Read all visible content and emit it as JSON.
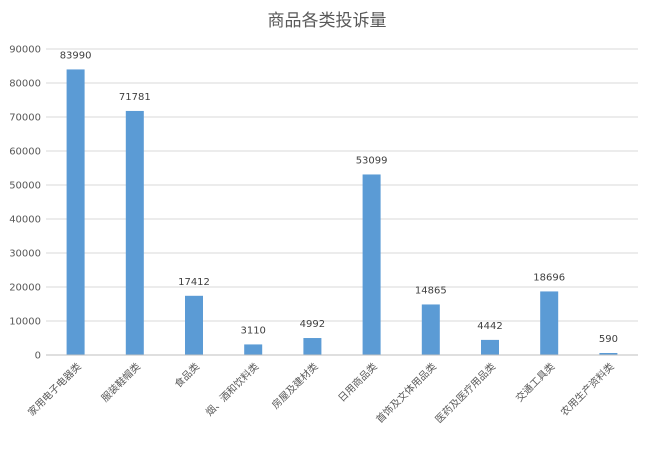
{
  "chart_data": {
    "type": "bar",
    "title": "商品各类投诉量",
    "categories": [
      "家用电子电器类",
      "服装鞋帽类",
      "食品类",
      "烟、酒和饮料类",
      "房屋及建材类",
      "日用商品类",
      "首饰及文体用品类",
      "医药及医疗用品类",
      "交通工具类",
      "农用生产资料类"
    ],
    "values": [
      83990,
      71781,
      17412,
      3110,
      4992,
      53099,
      14865,
      4442,
      18696,
      590
    ],
    "ylim": [
      0,
      90000
    ],
    "yticks": [
      0,
      10000,
      20000,
      30000,
      40000,
      50000,
      60000,
      70000,
      80000,
      90000
    ],
    "ytick_labels": [
      "0",
      "10000",
      "20000",
      "30000",
      "40000",
      "50000",
      "60000",
      "70000",
      "80000",
      "90000"
    ],
    "grid": true,
    "legend": "none",
    "bar_color": "#5b9bd5",
    "xlabel": "",
    "ylabel": ""
  }
}
